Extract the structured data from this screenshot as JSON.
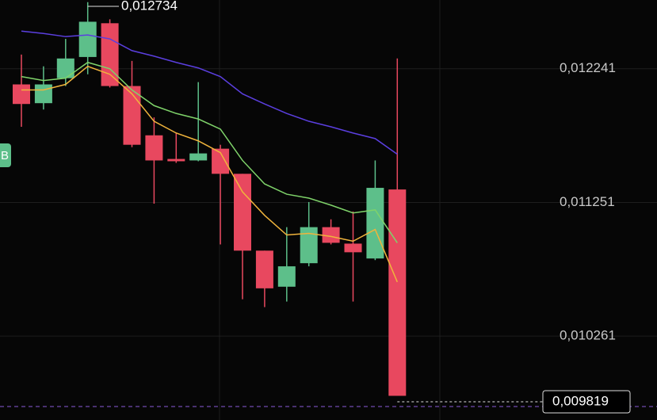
{
  "chart_data": {
    "type": "candlestick",
    "up_color": "#5dbf8a",
    "down_color": "#e8485f",
    "open": [
      0.012125,
      0.011986,
      0.012171,
      0.012328,
      0.012578,
      0.012113,
      0.011748,
      0.011573,
      0.011562,
      0.011649,
      0.011463,
      0.010894,
      0.010627,
      0.010801,
      0.011068,
      0.010946,
      0.010836,
      0.011347
    ],
    "high": [
      0.012346,
      0.012259,
      0.012462,
      0.012734,
      0.012607,
      0.012299,
      0.011881,
      0.011765,
      0.012142,
      0.011678,
      0.011463,
      0.010894,
      0.011068,
      0.011254,
      0.011126,
      0.011184,
      0.011562,
      0.012317
    ],
    "low": [
      0.011811,
      0.011939,
      0.012113,
      0.0122,
      0.012102,
      0.01166,
      0.011242,
      0.011544,
      0.011556,
      0.01094,
      0.010534,
      0.010476,
      0.010517,
      0.010778,
      0.01094,
      0.010517,
      0.010824,
      0.009819
    ],
    "close": [
      0.01198,
      0.012125,
      0.012317,
      0.012589,
      0.012113,
      0.011678,
      0.011562,
      0.011556,
      0.011614,
      0.011463,
      0.010894,
      0.010615,
      0.010778,
      0.011068,
      0.010952,
      0.010882,
      0.011359,
      0.009819
    ],
    "lines": [
      {
        "color": "#5b3fe0",
        "values": [
          0.01252,
          0.012502,
          0.012479,
          0.012491,
          0.012462,
          0.012375,
          0.012334,
          0.012288,
          0.012247,
          0.012183,
          0.012055,
          0.01198,
          0.01191,
          0.011852,
          0.011811,
          0.011765,
          0.011724,
          0.011608
        ]
      },
      {
        "color": "#7fd36a",
        "values": [
          0.012183,
          0.012154,
          0.012171,
          0.012288,
          0.012241,
          0.012084,
          0.011968,
          0.01191,
          0.011869,
          0.011794,
          0.011562,
          0.011388,
          0.011312,
          0.011283,
          0.011231,
          0.011173,
          0.011196,
          0.010952
        ]
      },
      {
        "color": "#f0b43c",
        "values": [
          0.012084,
          0.012084,
          0.012125,
          0.012259,
          0.0122,
          0.012055,
          0.011852,
          0.011765,
          0.011707,
          0.01162,
          0.011329,
          0.011155,
          0.01101,
          0.011022,
          0.010999,
          0.010964,
          0.011051,
          0.010662
        ]
      }
    ],
    "ylim": [
      0.00964,
      0.01275
    ],
    "yticks": [
      {
        "value": 0.012241,
        "label": "0,012241"
      },
      {
        "value": 0.011251,
        "label": "0,011251"
      },
      {
        "value": 0.010261,
        "label": "0,010261"
      }
    ],
    "grid": true,
    "high_marker": {
      "value": 0.012734,
      "label": "0,012734"
    },
    "last_price": {
      "value": 0.009819,
      "label": "0,009819"
    },
    "side_badge": "B"
  }
}
